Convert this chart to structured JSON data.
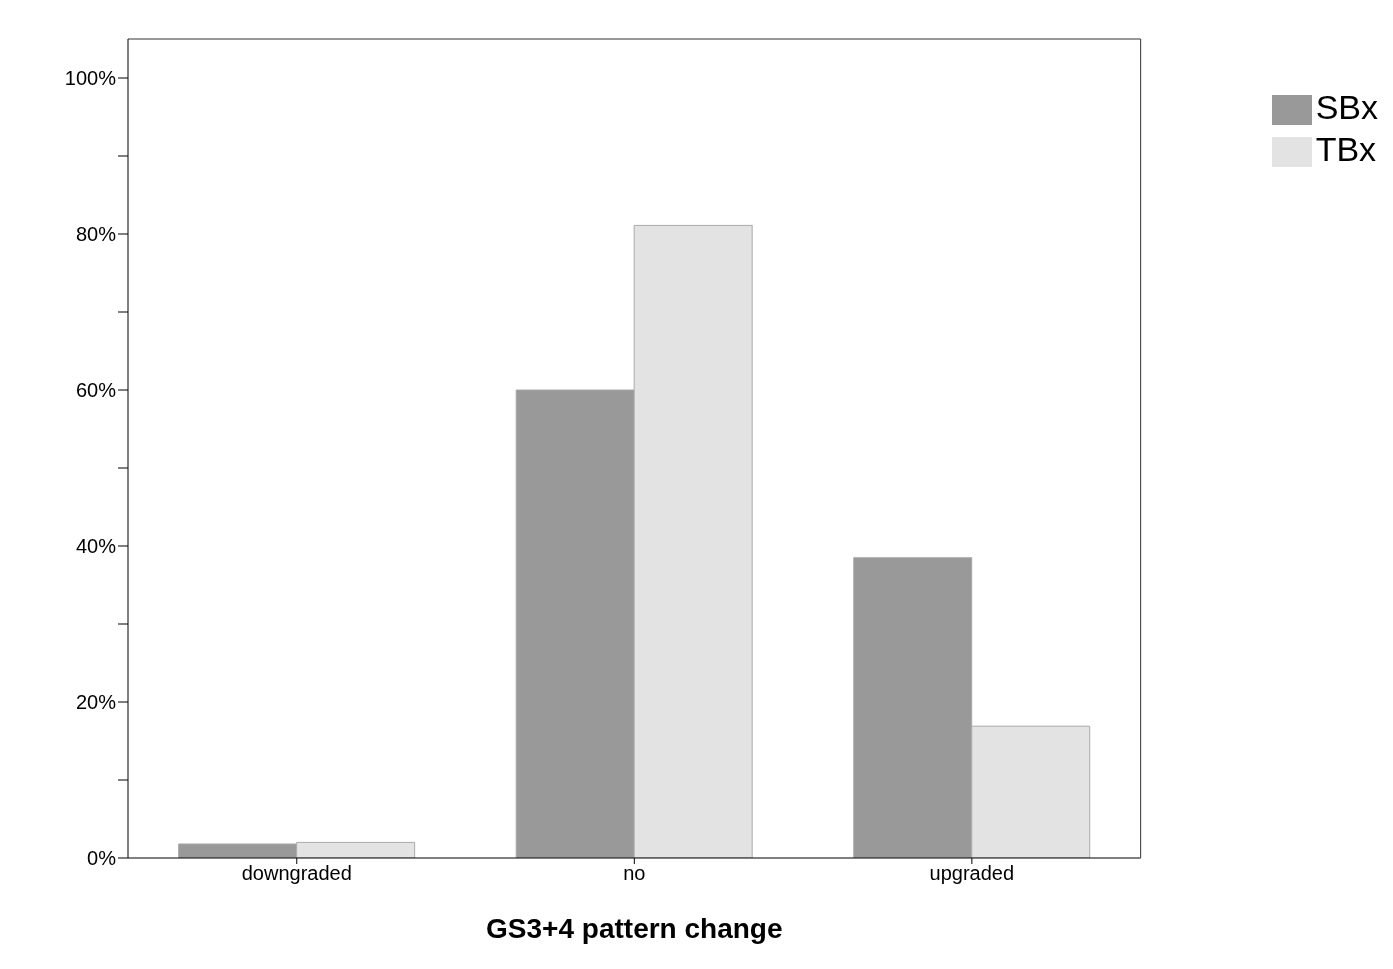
{
  "chart_data": {
    "type": "bar",
    "xlabel": "GS3+4 pattern change",
    "categories": [
      "downgraded",
      "no",
      "upgraded"
    ],
    "series": [
      {
        "name": "SBx",
        "color": "#999999",
        "values": [
          1.8,
          60,
          38.5
        ]
      },
      {
        "name": "TBx",
        "color": "#e3e3e3",
        "values": [
          2,
          81.1,
          16.9
        ]
      }
    ],
    "ylim": [
      0,
      105
    ],
    "yticks": [
      {
        "value": 0,
        "label": "0%"
      },
      {
        "value": 10,
        "label": null
      },
      {
        "value": 20,
        "label": "20%"
      },
      {
        "value": 30,
        "label": null
      },
      {
        "value": 40,
        "label": "40%"
      },
      {
        "value": 50,
        "label": null
      },
      {
        "value": 60,
        "label": "60%"
      },
      {
        "value": 70,
        "label": null
      },
      {
        "value": 80,
        "label": "80%"
      },
      {
        "value": 90,
        "label": null
      },
      {
        "value": 100,
        "label": "100%"
      }
    ],
    "grid": false,
    "legend": "top right"
  }
}
